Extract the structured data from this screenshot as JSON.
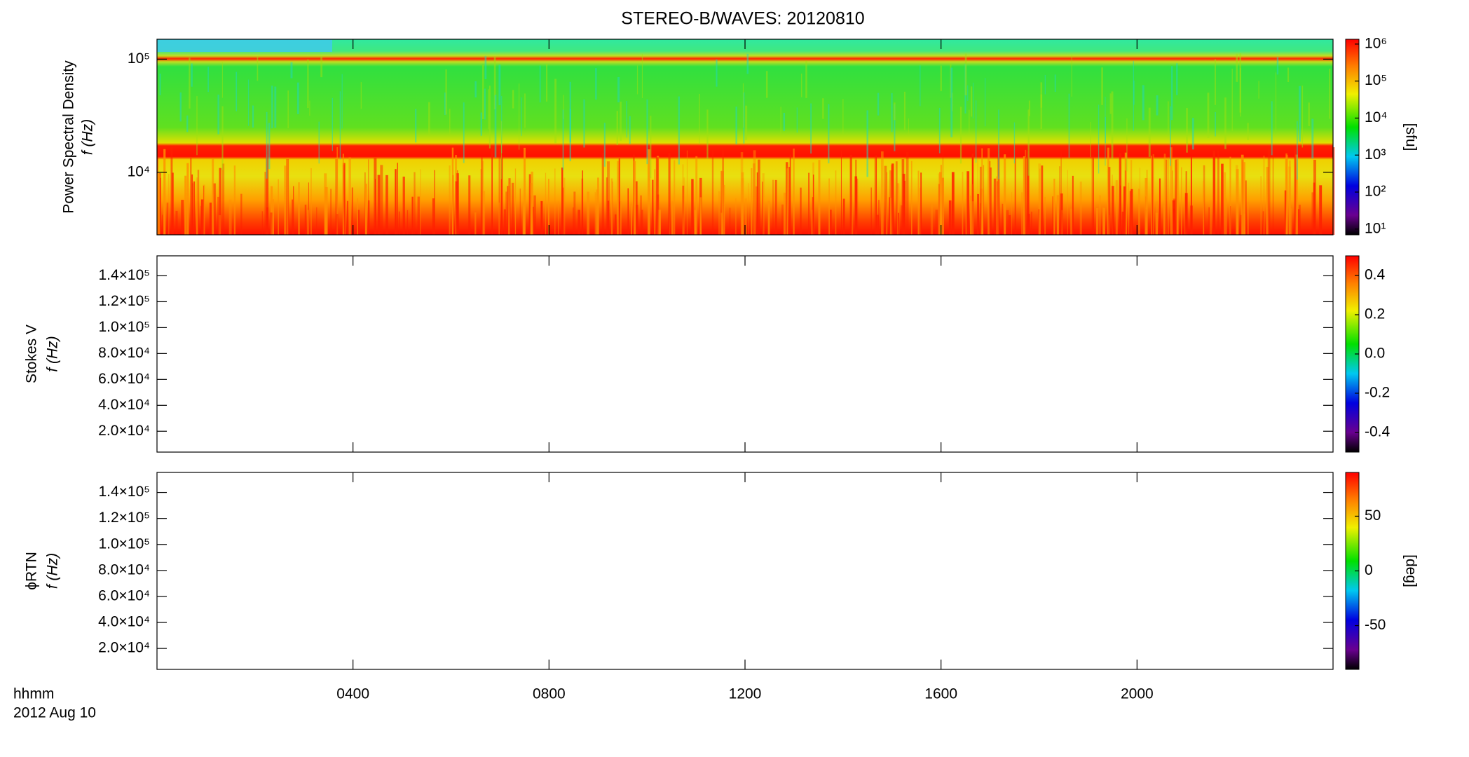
{
  "title": "STEREO-B/WAVES: 20120810",
  "time_labels": [
    "hhmm",
    "2012 Aug 10"
  ],
  "chart_data": [
    {
      "type": "heatmap",
      "ylabel": [
        "Power Spectral Density",
        "f (Hz)"
      ],
      "yscale": "log",
      "ylim": [
        2800,
        150000
      ],
      "yticks": [
        {
          "value": 10000,
          "label": "10⁴"
        },
        {
          "value": 100000,
          "label": "10⁵"
        }
      ],
      "colorbar": {
        "scale": "log",
        "clim": [
          7,
          1350000
        ],
        "label": "[sfu]",
        "ticks": [
          {
            "value": 10,
            "label": "10¹"
          },
          {
            "value": 100,
            "label": "10²"
          },
          {
            "value": 1000,
            "label": "10³"
          },
          {
            "value": 10000,
            "label": "10⁴"
          },
          {
            "value": 100000,
            "label": "10⁵"
          },
          {
            "value": 1000000,
            "label": "10⁶"
          }
        ]
      }
    },
    {
      "type": "heatmap",
      "ylabel": [
        "Stokes V",
        "f (Hz)"
      ],
      "yscale": "linear",
      "ylim": [
        3900,
        155400
      ],
      "yticks": [
        {
          "value": 20000,
          "label": "2.0×10⁴"
        },
        {
          "value": 40000,
          "label": "4.0×10⁴"
        },
        {
          "value": 60000,
          "label": "6.0×10⁴"
        },
        {
          "value": 80000,
          "label": "8.0×10⁴"
        },
        {
          "value": 100000,
          "label": "1.0×10⁵"
        },
        {
          "value": 120000,
          "label": "1.2×10⁵"
        },
        {
          "value": 140000,
          "label": "1.4×10⁵"
        }
      ],
      "colorbar": {
        "scale": "linear",
        "clim": [
          -0.5,
          0.5
        ],
        "ticks": [
          {
            "value": -0.4,
            "label": "-0.4"
          },
          {
            "value": -0.2,
            "label": "-0.2"
          },
          {
            "value": 0,
            "label": "0.0"
          },
          {
            "value": 0.2,
            "label": "0.2"
          },
          {
            "value": 0.4,
            "label": "0.4"
          }
        ]
      }
    },
    {
      "type": "heatmap",
      "ylabel": [
        "ϕRTN",
        "f (Hz)"
      ],
      "yscale": "linear",
      "ylim": [
        3900,
        155400
      ],
      "yticks": [
        {
          "value": 20000,
          "label": "2.0×10⁴"
        },
        {
          "value": 40000,
          "label": "4.0×10⁴"
        },
        {
          "value": 60000,
          "label": "6.0×10⁴"
        },
        {
          "value": 80000,
          "label": "8.0×10⁴"
        },
        {
          "value": 100000,
          "label": "1.0×10⁵"
        },
        {
          "value": 120000,
          "label": "1.2×10⁵"
        },
        {
          "value": 140000,
          "label": "1.4×10⁵"
        }
      ],
      "colorbar": {
        "scale": "linear",
        "clim": [
          -90,
          90
        ],
        "label": "[deg]",
        "ticks": [
          -50,
          0,
          50
        ]
      },
      "xlim": [
        0,
        24
      ],
      "xticks": [
        {
          "value": 4,
          "label": "0400"
        },
        {
          "value": 8,
          "label": "0800"
        },
        {
          "value": 12,
          "label": "1200"
        },
        {
          "value": 16,
          "label": "1600"
        },
        {
          "value": 20,
          "label": "2000"
        }
      ]
    }
  ]
}
